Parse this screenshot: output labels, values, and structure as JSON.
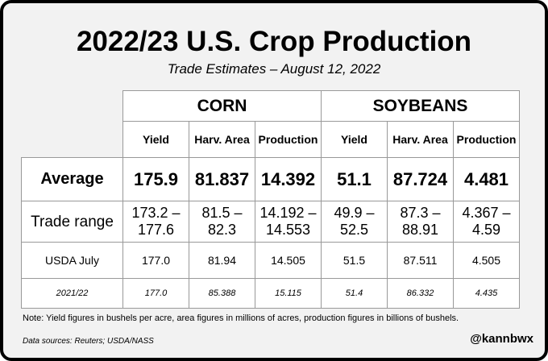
{
  "title": "2022/23 U.S. Crop Production",
  "subtitle": "Trade Estimates – August 12, 2022",
  "chart_data": {
    "type": "table",
    "groups": [
      {
        "name": "CORN",
        "color": "#ffff00",
        "columns": [
          "Yield",
          "Harv. Area",
          "Production"
        ]
      },
      {
        "name": "SOYBEANS",
        "color": "#00e060",
        "columns": [
          "Yield",
          "Harv. Area",
          "Production"
        ]
      }
    ],
    "rows": [
      {
        "label": "Average",
        "values": [
          "175.9",
          "81.837",
          "14.392",
          "51.1",
          "87.724",
          "4.481"
        ]
      },
      {
        "label": "Trade range",
        "values": [
          "173.2 – 177.6",
          "81.5 – 82.3",
          "14.192 – 14.553",
          "49.9 – 52.5",
          "87.3 – 88.91",
          "4.367 – 4.59"
        ]
      },
      {
        "label": "USDA July",
        "values": [
          "177.0",
          "81.94",
          "14.505",
          "51.5",
          "87.511",
          "4.505"
        ]
      },
      {
        "label": "2021/22",
        "values": [
          "177.0",
          "85.388",
          "15.115",
          "51.4",
          "86.332",
          "4.435"
        ]
      }
    ]
  },
  "note": "Note: Yield figures in bushels per acre, area figures in millions of acres, production figures in billions of bushels.",
  "sources": "Data sources: Reuters; USDA/NASS",
  "handle": "@kannbwx"
}
